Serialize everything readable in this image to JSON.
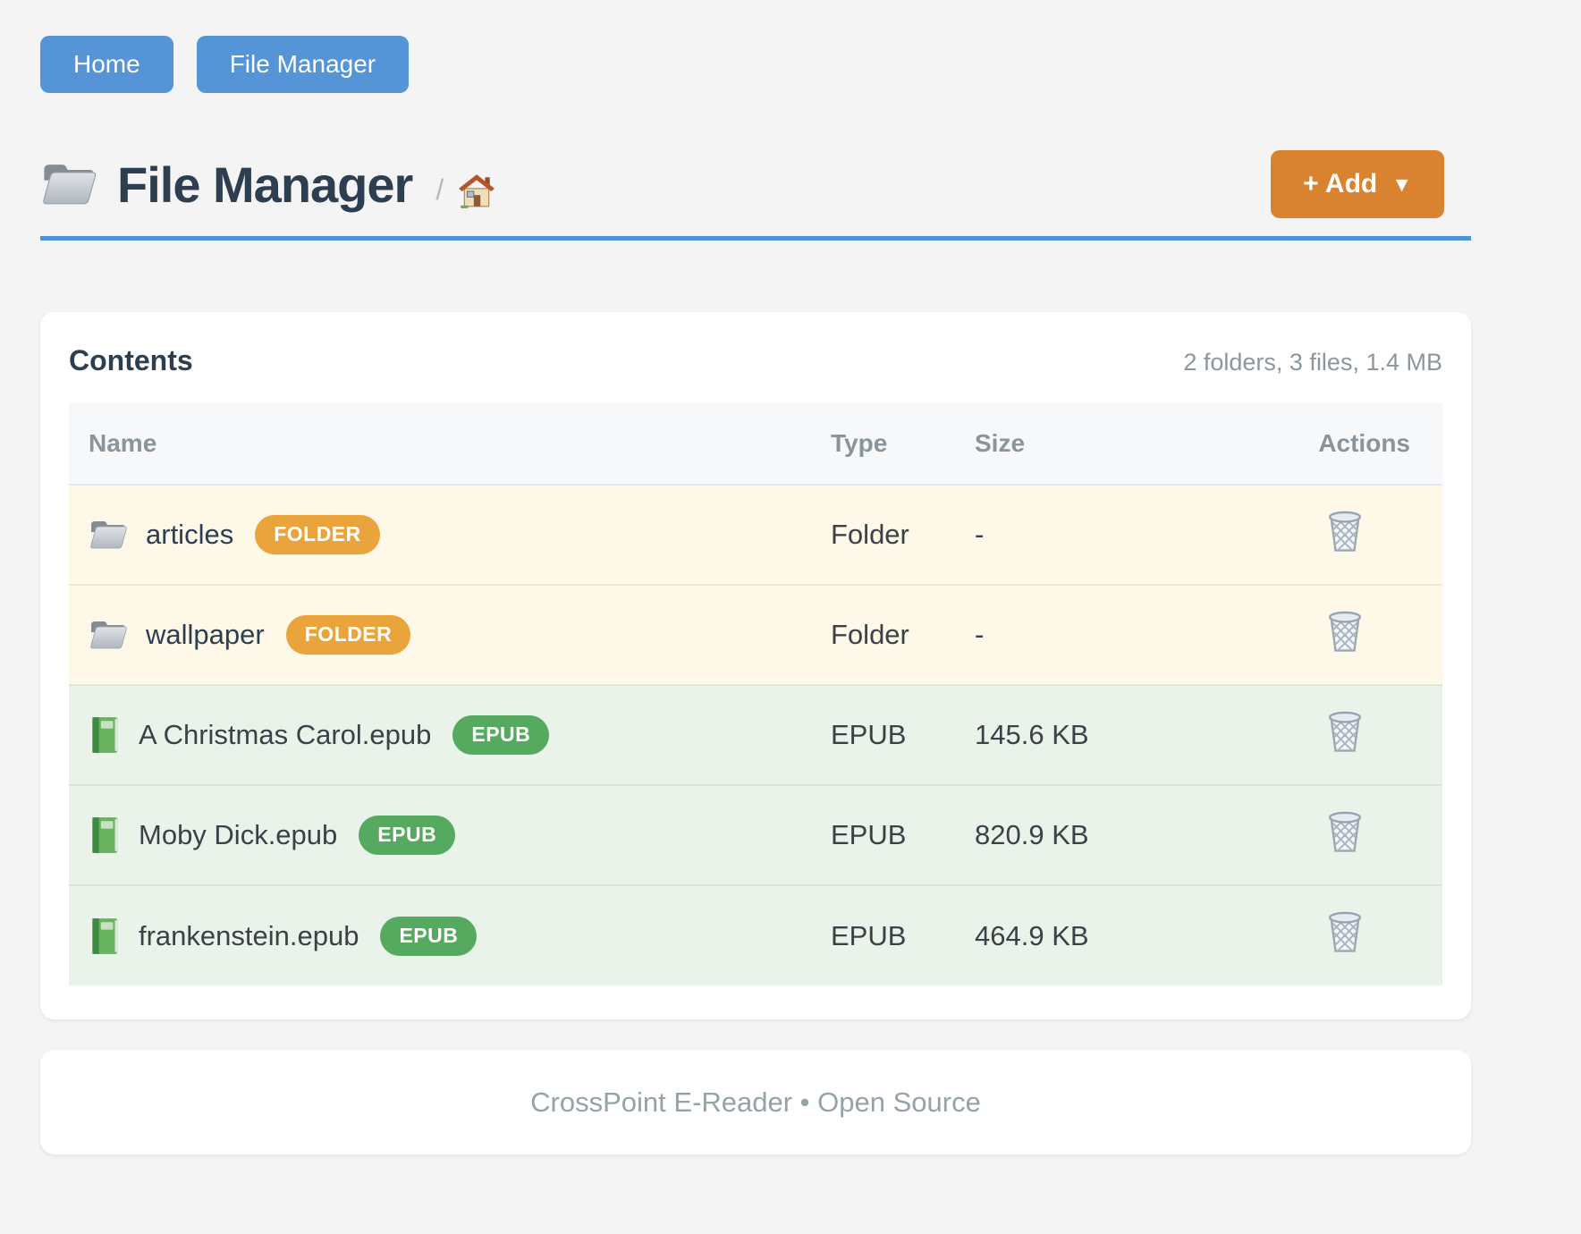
{
  "nav": {
    "buttons": [
      {
        "label": "Home"
      },
      {
        "label": "File Manager"
      }
    ]
  },
  "header": {
    "title": "File Manager",
    "title_icon": "folder-icon",
    "breadcrumb_separator": "/",
    "breadcrumb_home_icon": "house-icon",
    "add_button": {
      "label": "+ Add",
      "caret": "▼"
    }
  },
  "contents_card": {
    "title": "Contents",
    "summary": "2 folders, 3 files, 1.4 MB",
    "table": {
      "columns": [
        "Name",
        "Type",
        "Size",
        "Actions"
      ],
      "rows": [
        {
          "name": "articles",
          "badge": "FOLDER",
          "kind": "folder",
          "icon": "folder-icon",
          "type": "Folder",
          "size": "-",
          "action_icon": "trash-icon"
        },
        {
          "name": "wallpaper",
          "badge": "FOLDER",
          "kind": "folder",
          "icon": "folder-icon",
          "type": "Folder",
          "size": "-",
          "action_icon": "trash-icon"
        },
        {
          "name": "A Christmas Carol.epub",
          "badge": "EPUB",
          "kind": "epub",
          "icon": "green-book-icon",
          "type": "EPUB",
          "size": "145.6 KB",
          "action_icon": "trash-icon"
        },
        {
          "name": "Moby Dick.epub",
          "badge": "EPUB",
          "kind": "epub",
          "icon": "green-book-icon",
          "type": "EPUB",
          "size": "820.9 KB",
          "action_icon": "trash-icon"
        },
        {
          "name": "frankenstein.epub",
          "badge": "EPUB",
          "kind": "epub",
          "icon": "green-book-icon",
          "type": "EPUB",
          "size": "464.9 KB",
          "action_icon": "trash-icon"
        }
      ]
    }
  },
  "footer": {
    "text": "CrossPoint E-Reader • Open Source"
  },
  "colors": {
    "page_bg": "#f4f4f5",
    "nav_blue": "#5594d6",
    "accent_blue": "#4a93d9",
    "add_orange": "#d9822f",
    "badge_orange": "#e9a43c",
    "badge_green": "#55aa60",
    "folder_row_bg": "#fdf8e7",
    "epub_row_bg": "#e9f3ea",
    "heading": "#2d3e50"
  }
}
